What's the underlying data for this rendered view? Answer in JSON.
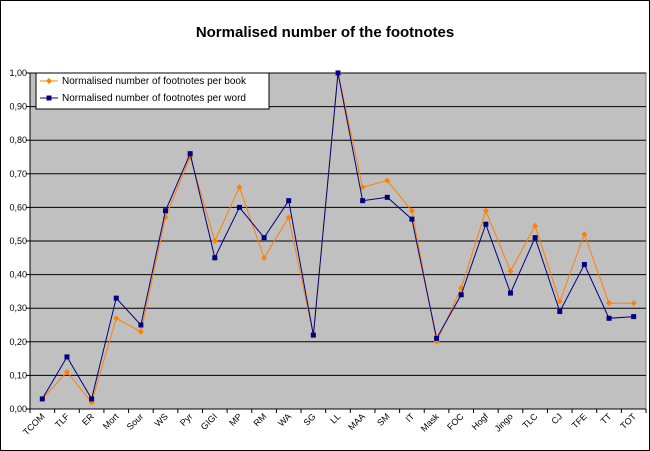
{
  "chart_data": {
    "type": "line",
    "title": "Normalised number of the footnotes",
    "xlabel": "",
    "ylabel": "",
    "ylim": [
      0,
      1
    ],
    "grid": true,
    "legend_position": "top-left",
    "y_ticks": [
      "0,00",
      "0,10",
      "0,20",
      "0,30",
      "0,40",
      "0,50",
      "0,60",
      "0,70",
      "0,80",
      "0,90",
      "1,00"
    ],
    "categories": [
      "TCOM",
      "TLF",
      "ER",
      "Mort",
      "Sour",
      "WS",
      "Pyr",
      "GIGI",
      "MP",
      "RM",
      "WA",
      "SG",
      "LL",
      "MAA",
      "SM",
      "IT",
      "Mask",
      "FOC",
      "Hogf",
      "Jingo",
      "TLC",
      "CJ",
      "TFE",
      "TT",
      "TOT"
    ],
    "series": [
      {
        "name": "Normalised number of footnotes per book",
        "color": "#FF8000",
        "marker": "diamond",
        "values": [
          0.03,
          0.11,
          0.02,
          0.27,
          0.23,
          0.57,
          0.75,
          0.5,
          0.66,
          0.45,
          0.57,
          0.22,
          1.0,
          0.66,
          0.68,
          0.59,
          0.2,
          0.36,
          0.59,
          0.41,
          0.545,
          0.32,
          0.52,
          0.315,
          0.315
        ]
      },
      {
        "name": "Normalised number of footnotes per word",
        "color": "#000080",
        "marker": "square",
        "values": [
          0.03,
          0.155,
          0.03,
          0.33,
          0.25,
          0.59,
          0.76,
          0.45,
          0.6,
          0.51,
          0.62,
          0.22,
          1.0,
          0.62,
          0.63,
          0.565,
          0.21,
          0.34,
          0.55,
          0.345,
          0.51,
          0.29,
          0.43,
          0.27,
          0.275
        ]
      }
    ],
    "colors": {
      "plot_background": "#C0C0C0",
      "gridline": "#000000"
    }
  }
}
